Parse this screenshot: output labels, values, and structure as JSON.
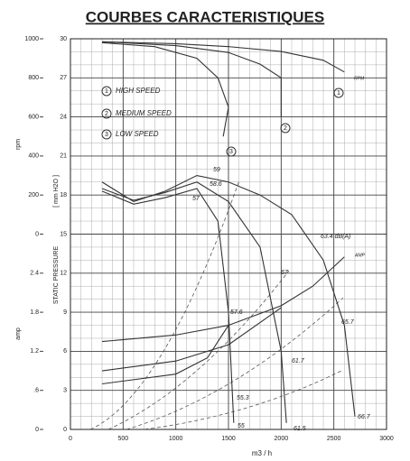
{
  "chart_data": {
    "type": "line",
    "title": "COURBES CARACTERISTIQUES",
    "x_label": "m3 / h",
    "y_label": "STATIC PRESSURE",
    "y_unit": "[ mm H2O ]",
    "y2_label": "rpm",
    "y3_label": "amp",
    "xlim": [
      0,
      3000
    ],
    "xticks": [
      0,
      500,
      1000,
      1500,
      2000,
      2500,
      3000
    ],
    "ylim": [
      0,
      30
    ],
    "yticks": [
      0,
      3,
      6,
      9,
      12,
      15,
      18,
      21,
      24,
      27,
      30
    ],
    "y2lim": [
      0,
      1000
    ],
    "y2ticks": [
      0,
      200,
      400,
      600,
      800,
      1000
    ],
    "y3lim": [
      0,
      2.4
    ],
    "y3ticks": [
      0,
      {
        "value": 0.6,
        "label": ".6"
      },
      1.2,
      1.8,
      2.4
    ],
    "grid": true,
    "legend": [
      {
        "label": "1",
        "text": "HIGH SPEED"
      },
      {
        "label": "2",
        "text": "MEDIUM SPEED"
      },
      {
        "label": "3",
        "text": "LOW SPEED"
      }
    ],
    "series": [
      {
        "axis": "y",
        "color": "#333333",
        "x": [
          300,
          600,
          900,
          1200,
          1500,
          1800,
          2100,
          2400,
          2600,
          2700
        ],
        "values": [
          19,
          17.5,
          18.3,
          19.5,
          19,
          18,
          16.5,
          13,
          8,
          1
        ]
      },
      {
        "axis": "y",
        "color": "#333333",
        "x": [
          300,
          600,
          900,
          1200,
          1500,
          1800,
          2000,
          2050
        ],
        "values": [
          18.5,
          17.6,
          18.2,
          19,
          17.5,
          14,
          6,
          0.5
        ]
      },
      {
        "axis": "y",
        "color": "#333333",
        "x": [
          300,
          600,
          900,
          1200,
          1400,
          1500,
          1550
        ],
        "values": [
          18.3,
          17.3,
          17.8,
          18.5,
          16,
          9,
          0.5
        ]
      },
      {
        "axis": "y2",
        "color": "#333333",
        "x": [
          300,
          1000,
          1500,
          2000,
          2400,
          2600
        ],
        "values": [
          985,
          975,
          960,
          935,
          890,
          830
        ]
      },
      {
        "axis": "y2",
        "color": "#333333",
        "x": [
          300,
          1000,
          1500,
          1800,
          2000,
          2000
        ],
        "values": [
          985,
          965,
          930,
          870,
          800,
          600
        ]
      },
      {
        "axis": "y2",
        "color": "#333333",
        "x": [
          300,
          800,
          1200,
          1400,
          1500,
          1450
        ],
        "values": [
          980,
          960,
          900,
          800,
          650,
          500
        ]
      },
      {
        "axis": "y3",
        "color": "#333333",
        "x": [
          300,
          1000,
          1500,
          2000,
          2300,
          2600
        ],
        "values": [
          1.35,
          1.45,
          1.6,
          1.9,
          2.2,
          2.65
        ]
      },
      {
        "axis": "y3",
        "color": "#333333",
        "x": [
          300,
          1000,
          1500,
          2000
        ],
        "values": [
          0.9,
          1.05,
          1.3,
          1.87
        ]
      },
      {
        "axis": "y3",
        "color": "#333333",
        "x": [
          300,
          1000,
          1300,
          1500
        ],
        "values": [
          0.7,
          0.85,
          1.1,
          1.6
        ]
      }
    ],
    "annotations": [
      "59",
      "58.6",
      "57",
      "63.4 dB(A)",
      "67",
      "57.6",
      "65.7",
      "61.7",
      "55.3",
      "55",
      "61.5",
      "66.7",
      "RPM",
      "AMP"
    ]
  }
}
